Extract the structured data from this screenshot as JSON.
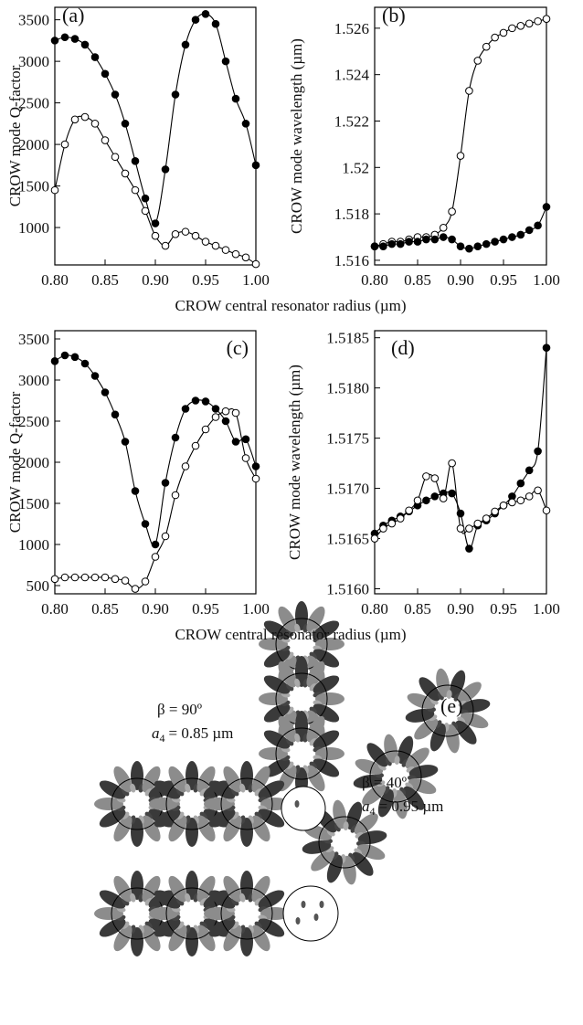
{
  "chart_data": [
    {
      "type": "line",
      "label": "(a)",
      "y_label": "CROW mode Q-factor",
      "x_label": "CROW central resonator radius (µm)",
      "x": [
        0.8,
        0.81,
        0.82,
        0.83,
        0.84,
        0.85,
        0.86,
        0.87,
        0.88,
        0.89,
        0.9,
        0.91,
        0.92,
        0.93,
        0.94,
        0.95,
        0.96,
        0.97,
        0.98,
        0.99,
        1.0
      ],
      "series": [
        {
          "marker": "filled",
          "color": "#000000",
          "values": [
            3250,
            3290,
            3270,
            3200,
            3050,
            2850,
            2600,
            2250,
            1800,
            1350,
            1050,
            1700,
            2600,
            3200,
            3500,
            3570,
            3450,
            3000,
            2550,
            2250,
            1750
          ]
        },
        {
          "marker": "open",
          "color": "#000000",
          "values": [
            1450,
            2000,
            2300,
            2330,
            2250,
            2050,
            1850,
            1650,
            1450,
            1200,
            900,
            780,
            920,
            950,
            900,
            830,
            780,
            730,
            680,
            640,
            560
          ]
        }
      ],
      "xlim": [
        0.8,
        1.0
      ],
      "xticks": [
        {
          "value": 0.8,
          "label": "0.80"
        },
        0.85,
        {
          "value": 0.9,
          "label": "0.90"
        },
        0.95,
        {
          "value": 1.0,
          "label": "1.00"
        }
      ],
      "ylim": [
        550,
        3650
      ],
      "yticks": [
        1000,
        1500,
        2000,
        2500,
        3000,
        3500
      ],
      "grid": false
    },
    {
      "type": "line",
      "label": "(b)",
      "y_label": "CROW mode wavelength (µm)",
      "x": [
        0.8,
        0.81,
        0.82,
        0.83,
        0.84,
        0.85,
        0.86,
        0.87,
        0.88,
        0.89,
        0.9,
        0.91,
        0.92,
        0.93,
        0.94,
        0.95,
        0.96,
        0.97,
        0.98,
        0.99,
        1.0
      ],
      "series": [
        {
          "marker": "open",
          "color": "#000000",
          "values": [
            1.5166,
            1.5167,
            1.5168,
            1.5168,
            1.5169,
            1.517,
            1.517,
            1.5171,
            1.5174,
            1.5181,
            1.5205,
            1.5233,
            1.5246,
            1.5252,
            1.5256,
            1.5258,
            1.526,
            1.5261,
            1.5262,
            1.5263,
            1.5264
          ]
        },
        {
          "marker": "filled",
          "color": "#000000",
          "values": [
            1.5166,
            1.5166,
            1.5167,
            1.5167,
            1.5168,
            1.5168,
            1.5169,
            1.5169,
            1.517,
            1.5169,
            1.5166,
            1.5165,
            1.5166,
            1.5167,
            1.5168,
            1.5169,
            1.517,
            1.5171,
            1.5173,
            1.5175,
            1.5183
          ]
        }
      ],
      "xlim": [
        0.8,
        1.0
      ],
      "xticks": [
        {
          "value": 0.8,
          "label": "0.80"
        },
        0.85,
        {
          "value": 0.9,
          "label": "0.90"
        },
        0.95,
        {
          "value": 1.0,
          "label": "1.00"
        }
      ],
      "ylim": [
        1.5158,
        1.5269
      ],
      "yticks": [
        1.516,
        1.518,
        1.52,
        1.522,
        1.524,
        1.526
      ],
      "grid": false
    },
    {
      "type": "line",
      "label": "(c)",
      "y_label": "CROW mode Q-factor",
      "x_label": "CROW central resonator radius (µm)",
      "x": [
        0.8,
        0.81,
        0.82,
        0.83,
        0.84,
        0.85,
        0.86,
        0.87,
        0.88,
        0.89,
        0.9,
        0.91,
        0.92,
        0.93,
        0.94,
        0.95,
        0.96,
        0.97,
        0.98,
        0.99,
        1.0
      ],
      "series": [
        {
          "marker": "filled",
          "color": "#000000",
          "values": [
            3230,
            3300,
            3280,
            3200,
            3050,
            2850,
            2580,
            2250,
            1650,
            1250,
            1000,
            1750,
            2300,
            2650,
            2750,
            2740,
            2650,
            2500,
            2250,
            2280,
            1950
          ]
        },
        {
          "marker": "open",
          "color": "#000000",
          "values": [
            580,
            600,
            600,
            600,
            600,
            600,
            580,
            560,
            460,
            550,
            850,
            1100,
            1600,
            1950,
            2200,
            2400,
            2550,
            2620,
            2600,
            2050,
            1800
          ]
        }
      ],
      "xlim": [
        0.8,
        1.0
      ],
      "xticks": [
        {
          "value": 0.8,
          "label": "0.80"
        },
        0.85,
        {
          "value": 0.9,
          "label": "0.90"
        },
        0.95,
        {
          "value": 1.0,
          "label": "1.00"
        }
      ],
      "ylim": [
        400,
        3600
      ],
      "yticks": [
        500,
        1000,
        1500,
        2000,
        2500,
        3000,
        3500
      ],
      "grid": false
    },
    {
      "type": "line",
      "label": "(d)",
      "y_label": "CROW mode wavelength (µm)",
      "x": [
        0.8,
        0.81,
        0.82,
        0.83,
        0.84,
        0.85,
        0.86,
        0.87,
        0.88,
        0.89,
        0.9,
        0.91,
        0.92,
        0.93,
        0.94,
        0.95,
        0.96,
        0.97,
        0.98,
        0.99,
        1.0
      ],
      "series": [
        {
          "marker": "filled",
          "color": "#000000",
          "values": [
            1.51655,
            1.51663,
            1.51668,
            1.51672,
            1.51677,
            1.51683,
            1.51688,
            1.51692,
            1.51695,
            1.51695,
            1.51675,
            1.5164,
            1.51663,
            1.51668,
            1.51675,
            1.51683,
            1.51692,
            1.51705,
            1.51718,
            1.51737,
            1.5184
          ]
        },
        {
          "marker": "open",
          "color": "#000000",
          "values": [
            1.5165,
            1.5166,
            1.51665,
            1.5167,
            1.51678,
            1.51688,
            1.51712,
            1.5171,
            1.5169,
            1.51725,
            1.5166,
            1.5166,
            1.51665,
            1.5167,
            1.51677,
            1.51683,
            1.51686,
            1.51688,
            1.51692,
            1.51698,
            1.51678
          ]
        }
      ],
      "xlim": [
        0.8,
        1.0
      ],
      "xticks": [
        {
          "value": 0.8,
          "label": "0.80"
        },
        0.85,
        {
          "value": 0.9,
          "label": "0.90"
        },
        0.95,
        {
          "value": 1.0,
          "label": "1.00"
        }
      ],
      "ylim": [
        1.51595,
        1.51857
      ],
      "yticks": [
        {
          "value": 1.516,
          "label": "1.5160"
        },
        1.5165,
        {
          "value": 1.517,
          "label": "1.5170"
        },
        1.5175,
        {
          "value": 1.518,
          "label": "1.5180"
        },
        1.5185
      ],
      "grid": false
    }
  ],
  "diagram": {
    "label": "(e)",
    "annotations": [
      {
        "beta": "β = 90º",
        "symbol": "a",
        "subscript": "4",
        "value": "= 0.85 µm"
      },
      {
        "beta": "β = 40º",
        "symbol": "a",
        "subscript": "4",
        "value": "= 0.95 µm"
      }
    ]
  }
}
